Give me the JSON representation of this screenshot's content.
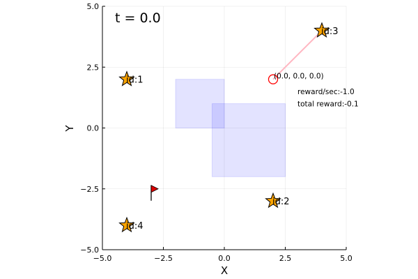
{
  "chart_data": {
    "type": "scatter",
    "xlabel": "X",
    "ylabel": "Y",
    "xlim": [
      -5.0,
      5.0
    ],
    "ylim": [
      -5.0,
      5.0
    ],
    "xticks": [
      -5.0,
      -2.5,
      0.0,
      2.5,
      5.0
    ],
    "yticks": [
      -5.0,
      -2.5,
      0.0,
      2.5,
      5.0
    ],
    "xtick_labels": [
      "−5.0",
      "−2.5",
      "0.0",
      "2.5",
      "5.0"
    ],
    "ytick_labels": [
      "−5.0",
      "−2.5",
      "0.0",
      "2.5",
      "5.0"
    ],
    "grid": true,
    "time_label": "t = 0.0",
    "obstacles": [
      {
        "x": [
          -2.0,
          0.0
        ],
        "y": [
          0.0,
          2.0
        ]
      },
      {
        "x": [
          -0.5,
          2.5
        ],
        "y": [
          -2.0,
          1.0
        ]
      }
    ],
    "targets": [
      {
        "label": "id:1",
        "x": -4.0,
        "y": 2.0
      },
      {
        "label": "id:2",
        "x": 2.0,
        "y": -3.0
      },
      {
        "label": "id:3",
        "x": 4.0,
        "y": 4.0
      },
      {
        "label": "id:4",
        "x": -4.0,
        "y": -4.0
      }
    ],
    "agent": {
      "x": 2.0,
      "y": 2.0,
      "state_label": "(0.0, 0.0, 0.0)",
      "link_to": {
        "x": 4.0,
        "y": 4.0
      }
    },
    "goal_flag": {
      "x": -3.0,
      "y": -2.5
    },
    "annotations": [
      {
        "text": "reward/sec:-1.0",
        "x": 3.0,
        "y": 1.5
      },
      {
        "text": "total reward:-0.1",
        "x": 3.0,
        "y": 1.0
      }
    ],
    "colors": {
      "obstacle": "#0000ff",
      "target": "#ffa500",
      "agent": "#ff0000",
      "link": "#ffb6c1",
      "flag": "#dd0000"
    }
  }
}
